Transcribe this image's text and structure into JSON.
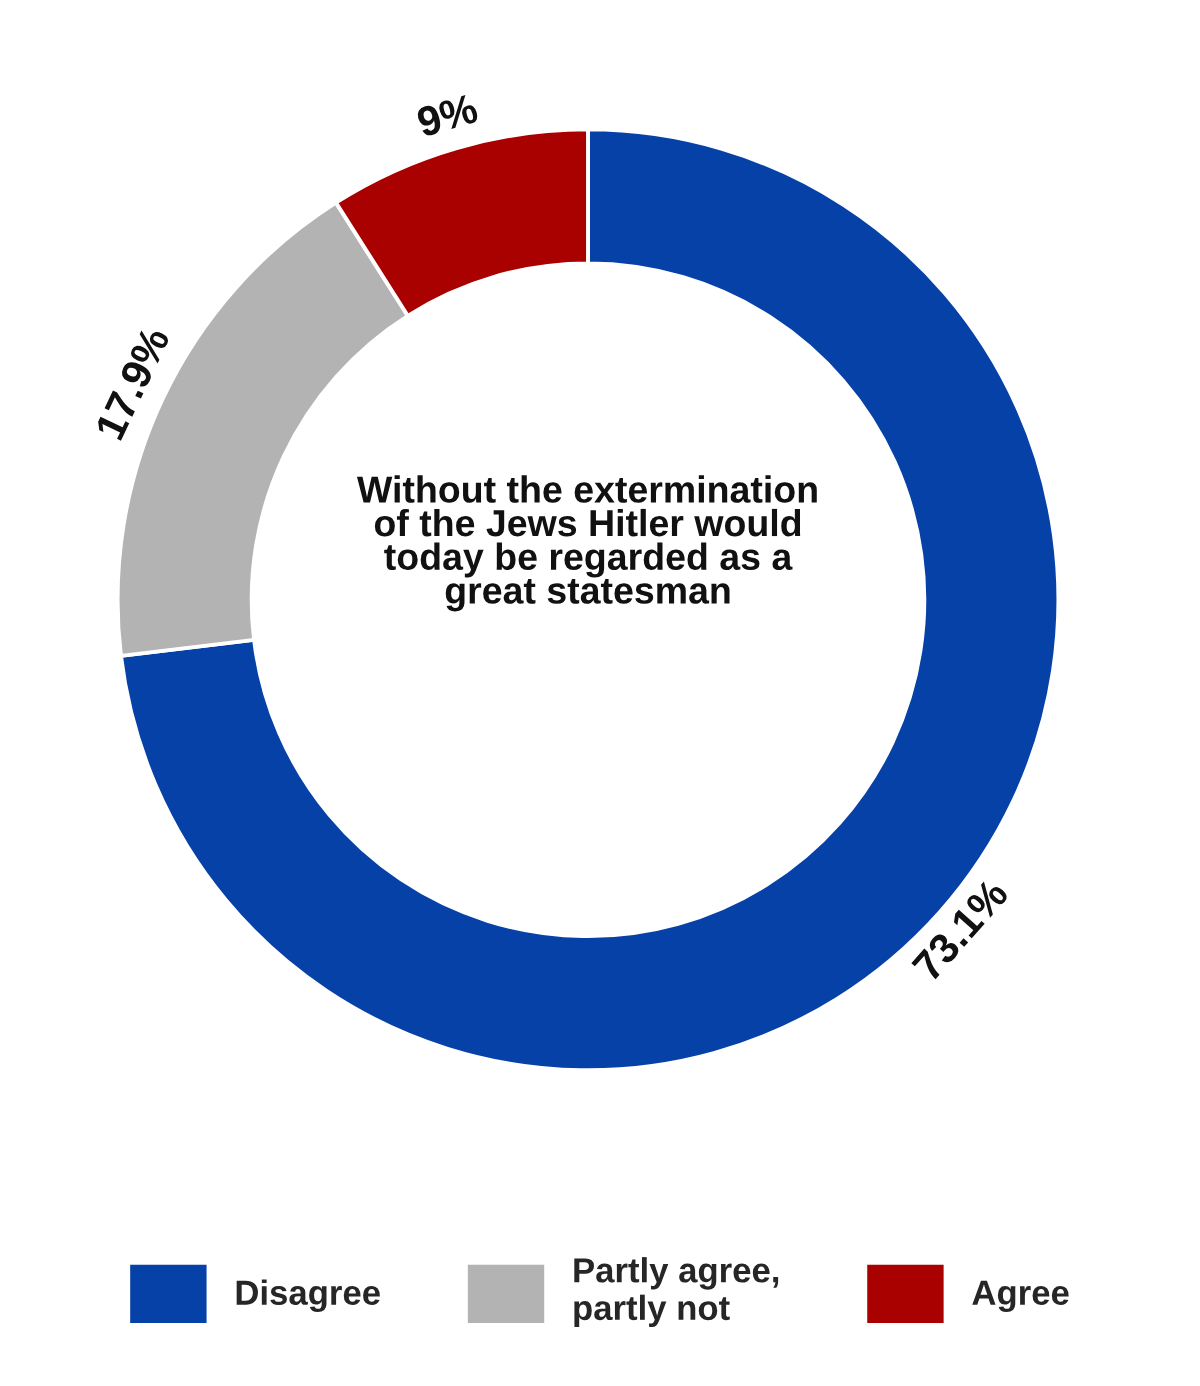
{
  "chart_data": {
    "type": "donut",
    "title": "Without the extermination\nof the Jews Hitler would\ntoday be regarded as a\ngreat statesman",
    "categories": [
      "Disagree",
      "Partly agree,\npartly not",
      "Agree"
    ],
    "values": [
      73.1,
      17.9,
      9
    ],
    "value_labels": [
      "73.1%",
      "17.9%",
      "9%"
    ],
    "colors": [
      "#0641a8",
      "#b3b3b3",
      "#a90000"
    ],
    "legend": "bottom"
  }
}
